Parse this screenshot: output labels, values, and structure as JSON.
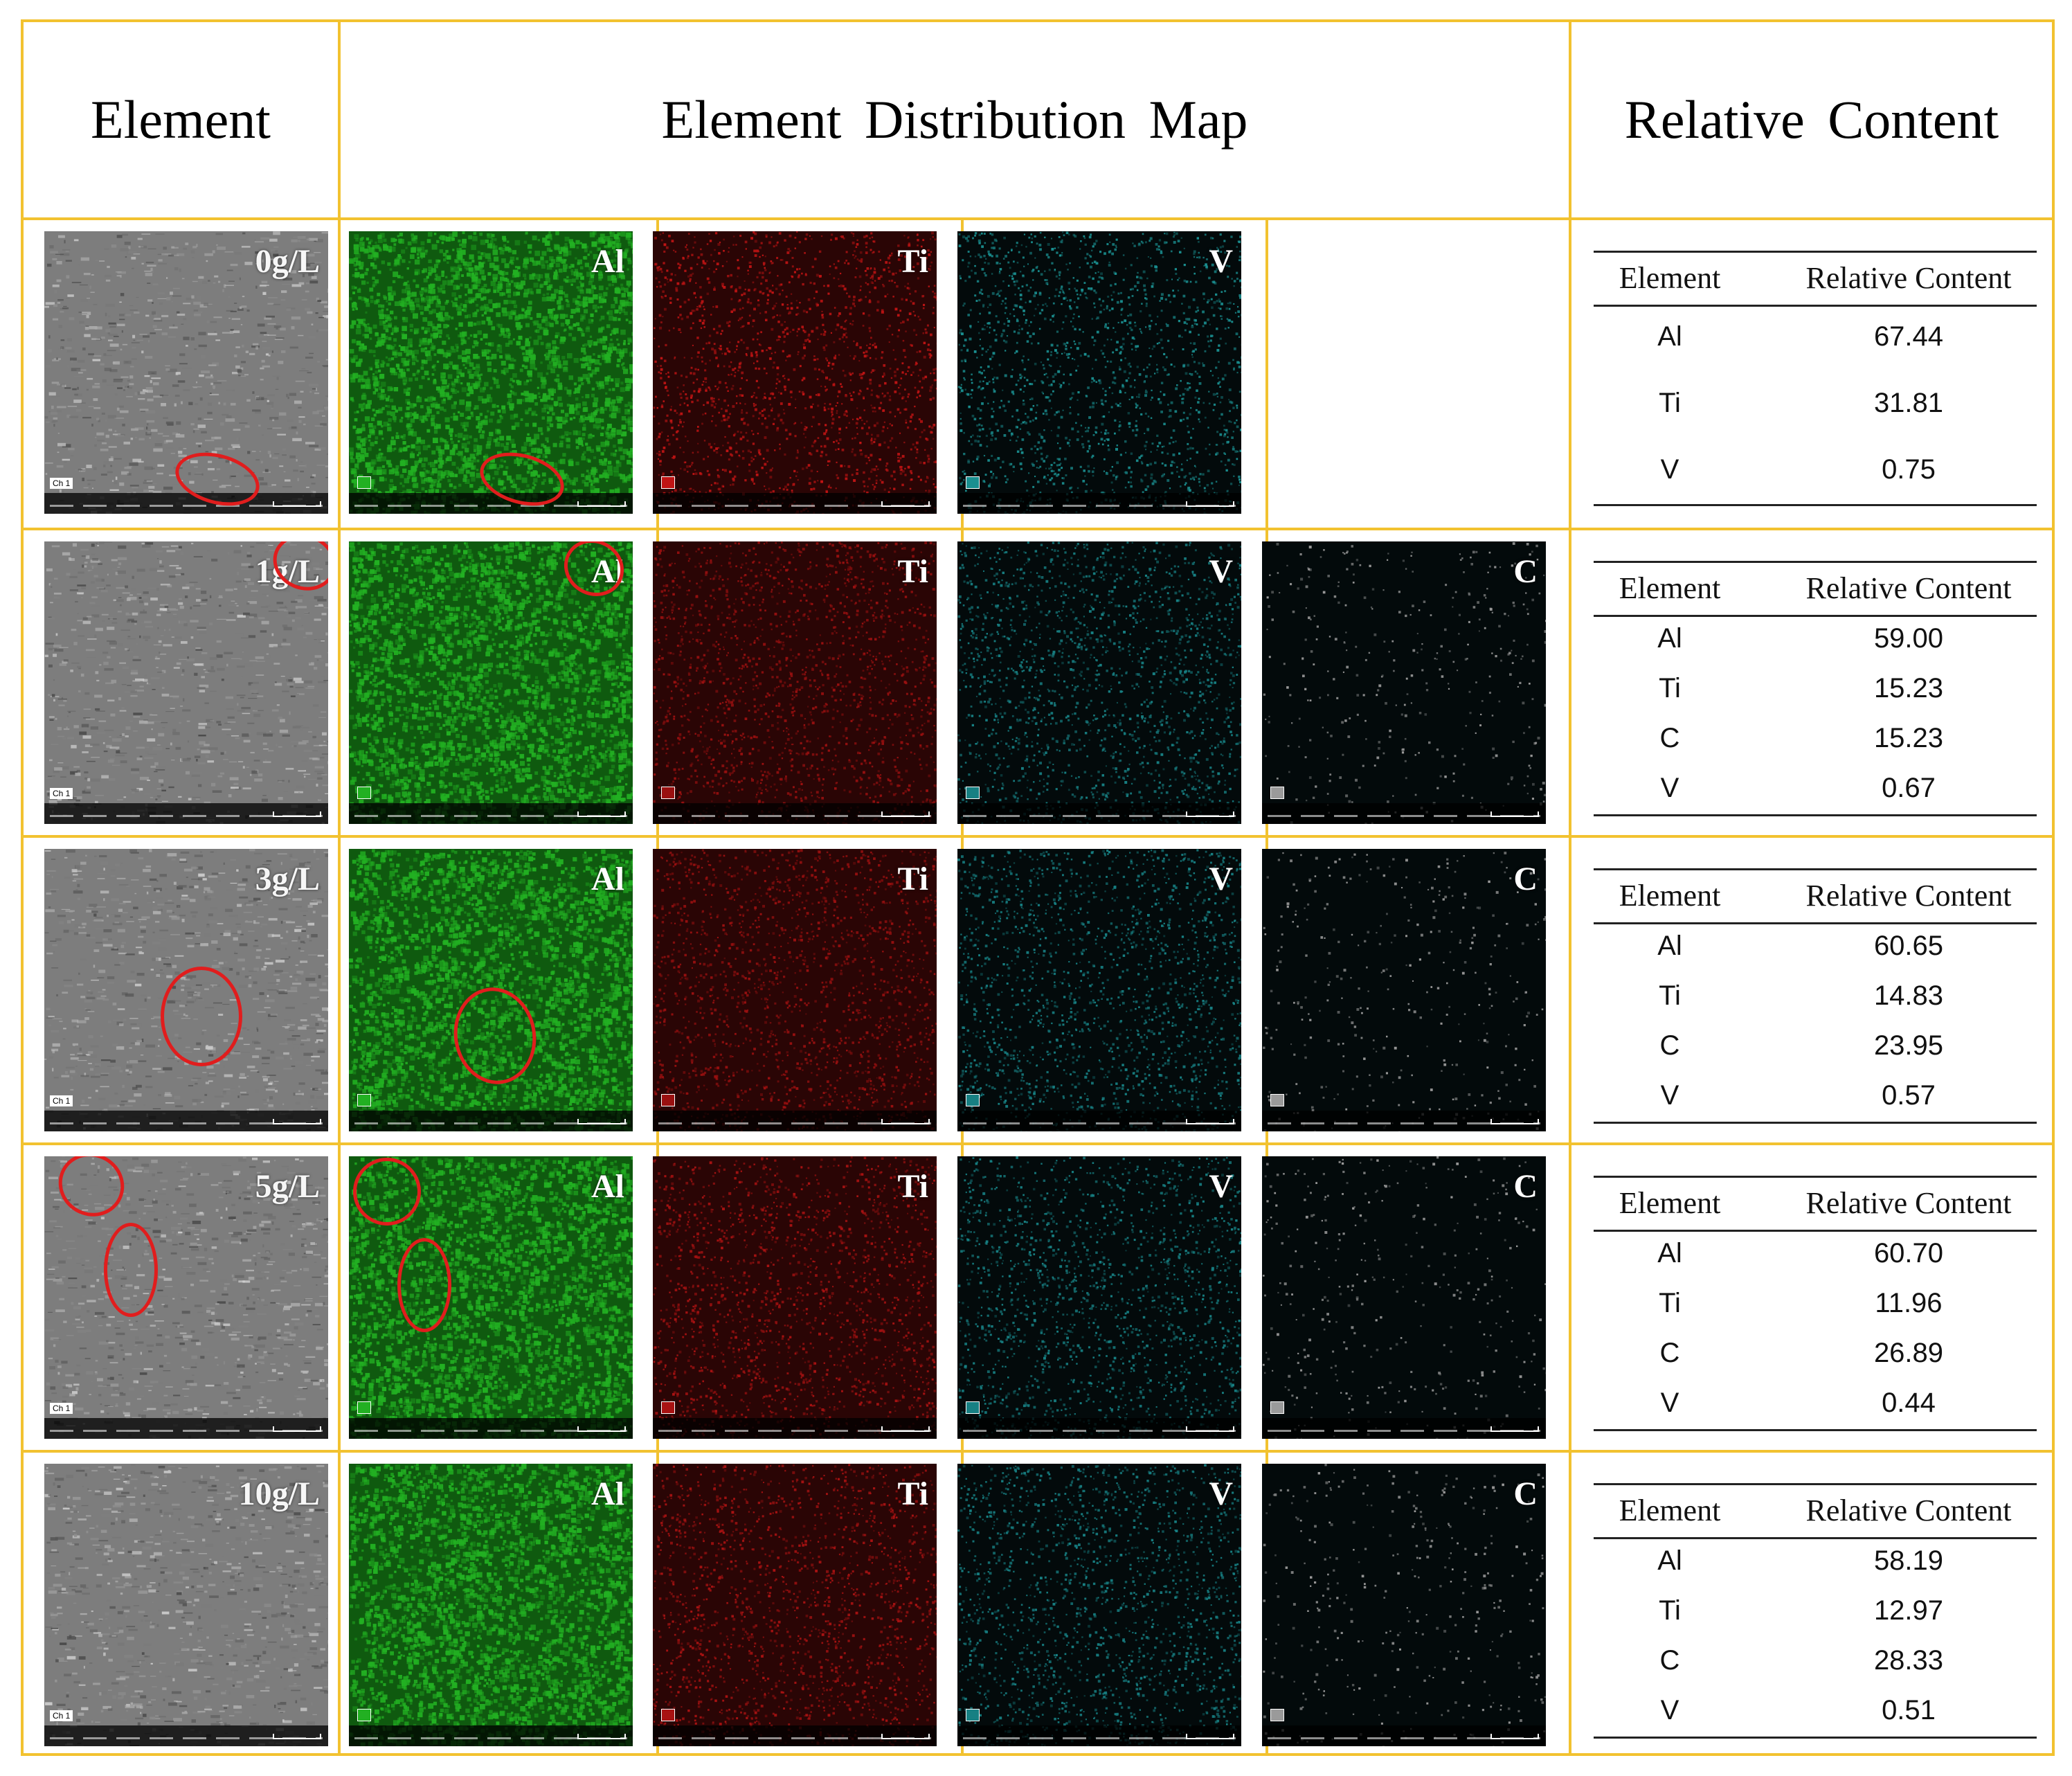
{
  "headers": {
    "element": "Element",
    "map": "Element  Distribution  Map",
    "content": "Relative  Content"
  },
  "rows": [
    {
      "label": "0g/L",
      "maps": [
        {
          "label": "Al",
          "color": "#22b022"
        },
        {
          "label": "Ti",
          "color": "#c01414"
        },
        {
          "label": "V",
          "color": "#1a8f90"
        }
      ],
      "table": {
        "col1": "Element",
        "col2": "Relative Content",
        "entries": [
          {
            "element": "Al",
            "value": "67.44"
          },
          {
            "element": "Ti",
            "value": "31.81"
          },
          {
            "element": "V",
            "value": "0.75"
          }
        ]
      }
    },
    {
      "label": "1g/L",
      "maps": [
        {
          "label": "Al",
          "color": "#22b022"
        },
        {
          "label": "Ti",
          "color": "#9a1010"
        },
        {
          "label": "V",
          "color": "#178083"
        },
        {
          "label": "C",
          "color": "#9a9a9a"
        }
      ],
      "table": {
        "col1": "Element",
        "col2": "Relative Content",
        "entries": [
          {
            "element": "Al",
            "value": "59.00"
          },
          {
            "element": "Ti",
            "value": "15.23"
          },
          {
            "element": "C",
            "value": "15.23"
          },
          {
            "element": "V",
            "value": "0.67"
          }
        ]
      }
    },
    {
      "label": "3g/L",
      "maps": [
        {
          "label": "Al",
          "color": "#22b022"
        },
        {
          "label": "Ti",
          "color": "#9a1010"
        },
        {
          "label": "V",
          "color": "#178083"
        },
        {
          "label": "C",
          "color": "#9a9a9a"
        }
      ],
      "table": {
        "col1": "Element",
        "col2": "Relative Content",
        "entries": [
          {
            "element": "Al",
            "value": "60.65"
          },
          {
            "element": "Ti",
            "value": "14.83"
          },
          {
            "element": "C",
            "value": "23.95"
          },
          {
            "element": "V",
            "value": "0.57"
          }
        ]
      }
    },
    {
      "label": "5g/L",
      "maps": [
        {
          "label": "Al",
          "color": "#22b022"
        },
        {
          "label": "Ti",
          "color": "#a81212"
        },
        {
          "label": "V",
          "color": "#178083"
        },
        {
          "label": "C",
          "color": "#9a9a9a"
        }
      ],
      "table": {
        "col1": "Element",
        "col2": "Relative Content",
        "entries": [
          {
            "element": "Al",
            "value": "60.70"
          },
          {
            "element": "Ti",
            "value": "11.96"
          },
          {
            "element": "C",
            "value": "26.89"
          },
          {
            "element": "V",
            "value": "0.44"
          }
        ]
      }
    },
    {
      "label": "10g/L",
      "maps": [
        {
          "label": "Al",
          "color": "#22b022"
        },
        {
          "label": "Ti",
          "color": "#a81212"
        },
        {
          "label": "V",
          "color": "#178083"
        },
        {
          "label": "C",
          "color": "#9a9a9a"
        }
      ],
      "table": {
        "col1": "Element",
        "col2": "Relative Content",
        "entries": [
          {
            "element": "Al",
            "value": "58.19"
          },
          {
            "element": "Ti",
            "value": "12.97"
          },
          {
            "element": "C",
            "value": "28.33"
          },
          {
            "element": "V",
            "value": "0.51"
          }
        ]
      }
    }
  ],
  "colors": {
    "grid": "#f2c230",
    "sem": "#8c8c8c",
    "circle": "#e11d1d"
  },
  "tags": {
    "sem": "Ch 1"
  }
}
